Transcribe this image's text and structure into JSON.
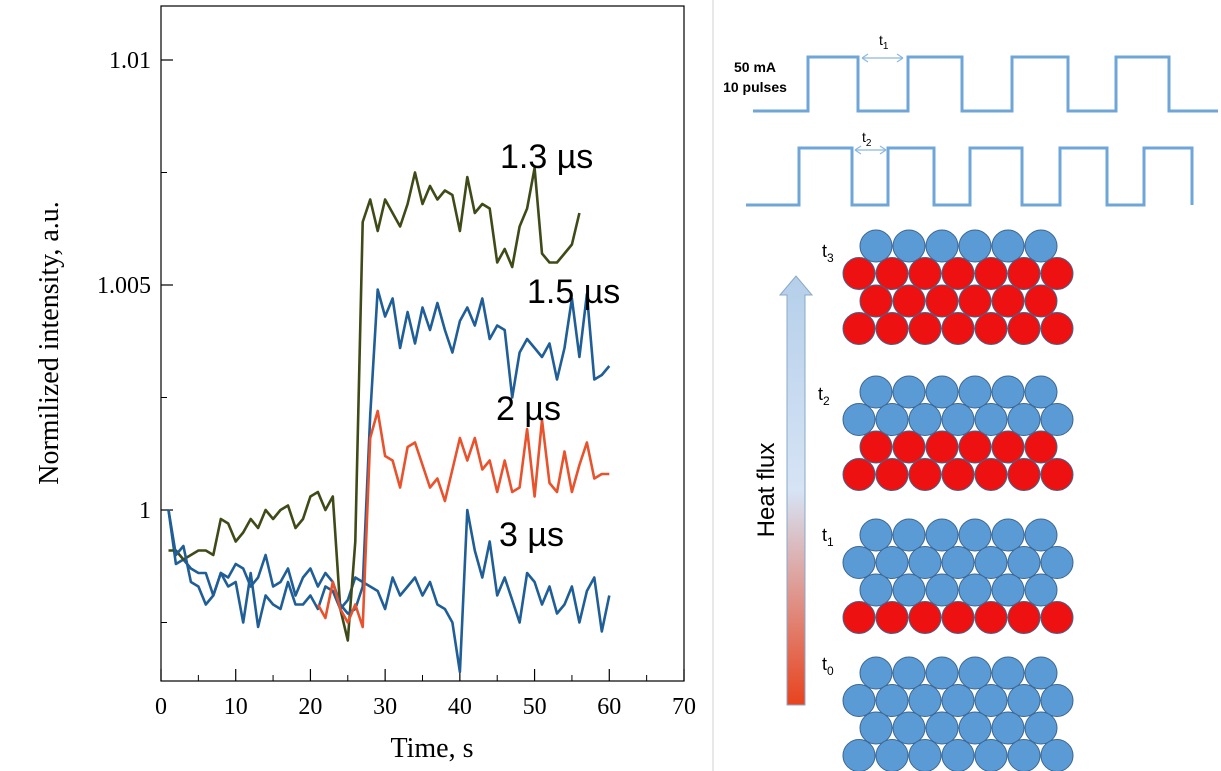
{
  "chart_data": {
    "type": "line",
    "title": "",
    "xlabel": "Time, s",
    "ylabel": "Normilized intensity, a.u.",
    "xlim": [
      0,
      70
    ],
    "ylim": [
      0.9962,
      1.0112
    ],
    "x_ticks": [
      0,
      10,
      20,
      30,
      40,
      50,
      60,
      70
    ],
    "y_ticks": [
      1,
      1.005,
      1.01
    ],
    "y_tick_labels": [
      "1",
      "1.005",
      "1.01"
    ],
    "grid": false,
    "series": [
      {
        "name": "1.3 µs",
        "color": "#3e4a17",
        "x": [
          1,
          2,
          3,
          4,
          5,
          6,
          7,
          8,
          9,
          10,
          11,
          12,
          13,
          14,
          15,
          16,
          17,
          18,
          19,
          20,
          21,
          22,
          23,
          24,
          25,
          26,
          27,
          28,
          29,
          30,
          31,
          32,
          33,
          34,
          35,
          36,
          37,
          38,
          39,
          40,
          41,
          42,
          43,
          44,
          45,
          46,
          47,
          48,
          49,
          50,
          51,
          52,
          53,
          54,
          55,
          56
        ],
        "y": [
          0.9991,
          0.9991,
          0.9989,
          0.999,
          0.9991,
          0.9991,
          0.999,
          0.9998,
          0.9997,
          0.9993,
          0.9995,
          0.9998,
          0.9996,
          1.0,
          0.9998,
          1.0,
          1.0001,
          0.9996,
          0.9998,
          1.0003,
          1.0004,
          1.0,
          1.0003,
          0.9978,
          0.9971,
          0.9993,
          1.0064,
          1.0069,
          1.0062,
          1.0069,
          1.0066,
          1.0063,
          1.0068,
          1.0075,
          1.0068,
          1.0072,
          1.0069,
          1.0071,
          1.007,
          1.0062,
          1.0074,
          1.0066,
          1.0068,
          1.0067,
          1.0055,
          1.0058,
          1.0054,
          1.0063,
          1.0067,
          1.0076,
          1.0057,
          1.0055,
          1.0055,
          1.0057,
          1.0059,
          1.0066
        ]
      },
      {
        "name": "1.5 µs",
        "color": "#1f5e96",
        "x": [
          1,
          2,
          3,
          4,
          5,
          6,
          7,
          8,
          9,
          10,
          11,
          12,
          13,
          14,
          15,
          16,
          17,
          18,
          19,
          20,
          21,
          22,
          23,
          24,
          25,
          26,
          27,
          28,
          29,
          30,
          31,
          32,
          33,
          34,
          35,
          36,
          37,
          38,
          39,
          40,
          41,
          42,
          43,
          44,
          45,
          46,
          47,
          48,
          49,
          50,
          51,
          52,
          53,
          54,
          55,
          56,
          57,
          58,
          59,
          60
        ],
        "y": [
          1.0,
          0.999,
          0.9992,
          0.9984,
          0.9983,
          0.9979,
          0.9981,
          0.9986,
          0.9985,
          0.9988,
          0.9987,
          0.9983,
          0.9985,
          0.999,
          0.9983,
          0.9984,
          0.9987,
          0.9981,
          0.9985,
          0.9987,
          0.9983,
          0.9986,
          0.9984,
          0.9979,
          0.9977,
          0.9978,
          0.9983,
          1.0021,
          1.0049,
          1.0043,
          1.0047,
          1.0036,
          1.0044,
          1.0037,
          1.0045,
          1.004,
          1.0046,
          1.004,
          1.0035,
          1.0042,
          1.0045,
          1.0041,
          1.0047,
          1.0038,
          1.0041,
          1.004,
          1.0025,
          1.0035,
          1.0038,
          1.0036,
          1.0034,
          1.0037,
          1.0029,
          1.0036,
          1.0047,
          1.0034,
          1.0048,
          1.0029,
          1.003,
          1.0032
        ]
      },
      {
        "name": "2 µs",
        "color": "#e8522c",
        "x": [
          21,
          22,
          23,
          24,
          25,
          26,
          27,
          28,
          29,
          30,
          31,
          32,
          33,
          34,
          35,
          36,
          37,
          38,
          39,
          40,
          41,
          42,
          43,
          44,
          45,
          46,
          47,
          48,
          49,
          50,
          51,
          52,
          53,
          54,
          55,
          56,
          57,
          58,
          59,
          60
        ],
        "y": [
          0.9979,
          0.9976,
          0.9984,
          0.9978,
          0.9975,
          0.9979,
          0.9974,
          1.0016,
          1.0022,
          1.0012,
          1.0011,
          1.0005,
          1.0014,
          1.0015,
          1.001,
          1.0005,
          1.0007,
          1.0002,
          1.0009,
          1.0016,
          1.0011,
          1.0016,
          1.0009,
          1.0011,
          1.0004,
          1.0011,
          1.0004,
          1.0005,
          1.0018,
          1.0003,
          1.002,
          1.0006,
          1.0004,
          1.0013,
          1.0004,
          1.001,
          1.0015,
          1.0007,
          1.0008,
          1.0008
        ]
      },
      {
        "name": "3 µs",
        "color": "#1f5e96",
        "x": [
          1,
          2,
          3,
          4,
          5,
          6,
          7,
          8,
          9,
          10,
          11,
          12,
          13,
          14,
          15,
          16,
          17,
          18,
          19,
          20,
          21,
          22,
          23,
          24,
          25,
          26,
          27,
          28,
          29,
          30,
          31,
          32,
          33,
          34,
          35,
          36,
          37,
          38,
          39,
          40,
          41,
          42,
          43,
          44,
          45,
          46,
          47,
          48,
          49,
          50,
          51,
          52,
          53,
          54,
          55,
          56,
          57,
          58,
          59,
          60
        ],
        "y": [
          1.0,
          0.9988,
          0.9989,
          0.9987,
          0.9986,
          0.9986,
          0.9981,
          0.9986,
          0.9983,
          0.9984,
          0.9975,
          0.9986,
          0.9974,
          0.9981,
          0.9979,
          0.9978,
          0.9984,
          0.9979,
          0.9979,
          0.9981,
          0.9978,
          0.9983,
          0.9982,
          0.9978,
          0.998,
          0.9985,
          0.9984,
          0.9983,
          0.9982,
          0.9978,
          0.9985,
          0.9981,
          0.9983,
          0.9985,
          0.9981,
          0.9984,
          0.9979,
          0.9978,
          0.9975,
          0.9964,
          1.0,
          0.9991,
          0.9985,
          0.9993,
          0.9981,
          0.9985,
          0.998,
          0.9975,
          0.9986,
          0.9984,
          0.9979,
          0.9983,
          0.9977,
          0.9979,
          0.9983,
          0.9975,
          0.9982,
          0.9985,
          0.9973,
          0.9981
        ]
      }
    ],
    "annotations": [
      "1.3 µs",
      "1.5 µs",
      "2 µs",
      "3 µs"
    ]
  },
  "diagram": {
    "pulse_current": "50 mA",
    "pulse_count": "10 pulses",
    "interval_labels": [
      "t",
      "1",
      "t",
      "2"
    ],
    "heat_flux_label": "Heat flux",
    "stage_labels": [
      {
        "base": "t",
        "sub": "3"
      },
      {
        "base": "t",
        "sub": "2"
      },
      {
        "base": "t",
        "sub": "1"
      },
      {
        "base": "t",
        "sub": "0"
      }
    ],
    "colors": {
      "particle_cool": "#5b9bd5",
      "particle_hot": "#ee1111",
      "wave": "#6fa6d8"
    }
  }
}
